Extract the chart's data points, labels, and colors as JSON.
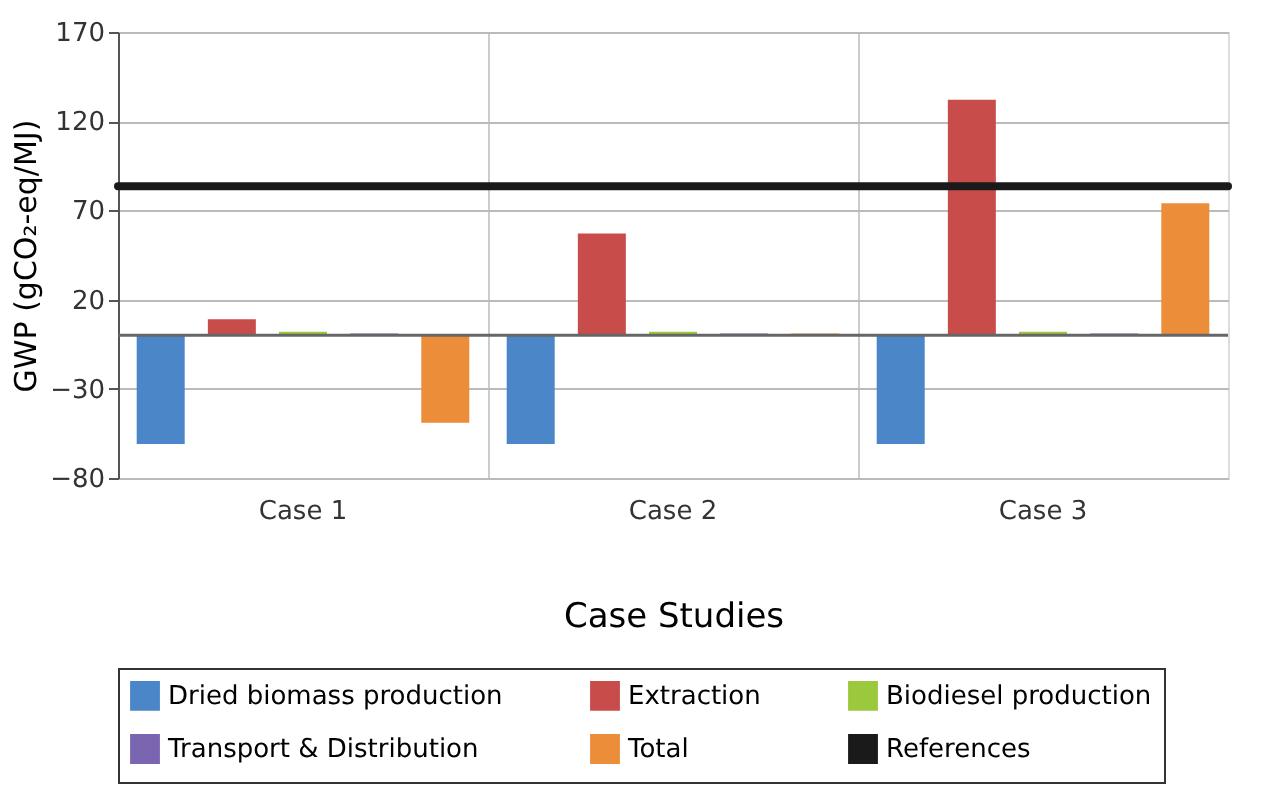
{
  "chart_data": {
    "type": "bar",
    "xlabel": "Case Studies",
    "ylabel": "GWP (gCO₂-eq/MJ)",
    "categories": [
      "Case 1",
      "Case 2",
      "Case 3"
    ],
    "series": [
      {
        "name": "Dried biomass production",
        "color": "#4a86c8",
        "values": [
          -61,
          -61,
          -61
        ]
      },
      {
        "name": "Extraction",
        "color": "#c84c4a",
        "values": [
          9,
          57,
          132
        ]
      },
      {
        "name": "Biodiesel production",
        "color": "#9bc83c",
        "values": [
          2,
          2,
          2
        ]
      },
      {
        "name": "Transport & Distribution",
        "color": "#7a66b0",
        "values": [
          1,
          1,
          1
        ]
      },
      {
        "name": "Total",
        "color": "#ec8d3a",
        "values": [
          -49,
          1,
          74
        ]
      }
    ],
    "ref_lines": [
      {
        "axis": "y",
        "value": 83.5,
        "label": "References",
        "color": "#1a1a1a"
      }
    ],
    "ylim": [
      -80,
      170
    ],
    "yticks": [
      -80,
      -30,
      20,
      70,
      120,
      170
    ],
    "grid": true,
    "legend": "bottom"
  }
}
